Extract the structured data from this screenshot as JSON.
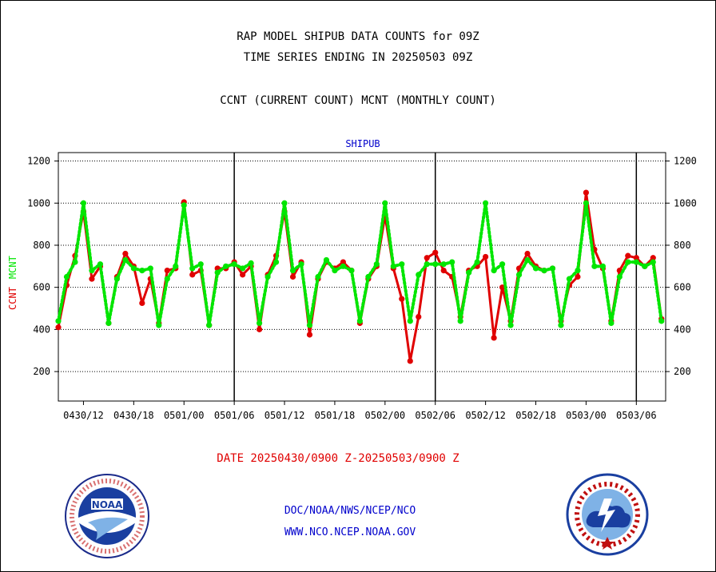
{
  "header": {
    "title_line1": "RAP MODEL SHIPUB DATA COUNTS for 09Z",
    "title_line2": "TIME SERIES ENDING IN 20250503 09Z",
    "title_line3": "CCNT (CURRENT COUNT) MCNT (MONTHLY COUNT)"
  },
  "footer": {
    "date_range": "DATE 20250430/0900 Z-20250503/0900 Z",
    "link1": "DOC/NOAA/NWS/NCEP/NCO",
    "link2": "WWW.NCO.NCEP.NOAA.GOV"
  },
  "logos": {
    "left": "noaa-logo-icon",
    "right": "national-weather-service-logo-icon"
  },
  "chart_data": {
    "type": "line",
    "title": "SHIPUB",
    "ylabel_ccnt": "CCNT",
    "ylabel_mcnt": "MCNT",
    "ylim": [
      60,
      1240
    ],
    "yticks": [
      200,
      400,
      600,
      800,
      1000,
      1200
    ],
    "xlim": [
      0,
      72.5
    ],
    "x_tick_positions": [
      3,
      9,
      15,
      21,
      27,
      33,
      39,
      45,
      51,
      57,
      63,
      69
    ],
    "x_tick_labels": [
      "0430/12",
      "0430/18",
      "0501/00",
      "0501/06",
      "0501/12",
      "0501/18",
      "0502/00",
      "0502/06",
      "0502/12",
      "0502/18",
      "0503/00",
      "0503/06"
    ],
    "day_dividers": [
      21,
      45,
      69
    ],
    "grid": "horizontal-dotted",
    "colors": {
      "ccnt": "#e00000",
      "mcnt": "#00e600",
      "title": "#0000cc"
    },
    "series": [
      {
        "name": "CCNT",
        "values": [
          410,
          610,
          750,
          960,
          640,
          700,
          430,
          650,
          760,
          700,
          525,
          640,
          430,
          680,
          690,
          1005,
          660,
          680,
          420,
          690,
          690,
          720,
          660,
          700,
          400,
          660,
          750,
          960,
          650,
          720,
          375,
          640,
          720,
          690,
          720,
          680,
          430,
          640,
          700,
          940,
          690,
          545,
          250,
          460,
          740,
          765,
          680,
          650,
          460,
          680,
          700,
          745,
          360,
          600,
          440,
          690,
          760,
          700,
          680,
          690,
          440,
          610,
          650,
          1050,
          780,
          690,
          440,
          680,
          750,
          740,
          700,
          740,
          450
        ]
      },
      {
        "name": "MCNT",
        "values": [
          440,
          650,
          720,
          1000,
          680,
          710,
          430,
          640,
          730,
          690,
          680,
          690,
          420,
          640,
          700,
          990,
          690,
          710,
          420,
          670,
          700,
          710,
          690,
          715,
          430,
          650,
          720,
          1000,
          680,
          710,
          420,
          650,
          730,
          680,
          700,
          680,
          440,
          650,
          710,
          1000,
          700,
          710,
          440,
          660,
          710,
          710,
          710,
          720,
          440,
          670,
          720,
          1000,
          680,
          710,
          420,
          660,
          730,
          690,
          680,
          690,
          420,
          640,
          680,
          1000,
          700,
          700,
          430,
          650,
          720,
          720,
          700,
          720,
          440
        ]
      }
    ]
  }
}
